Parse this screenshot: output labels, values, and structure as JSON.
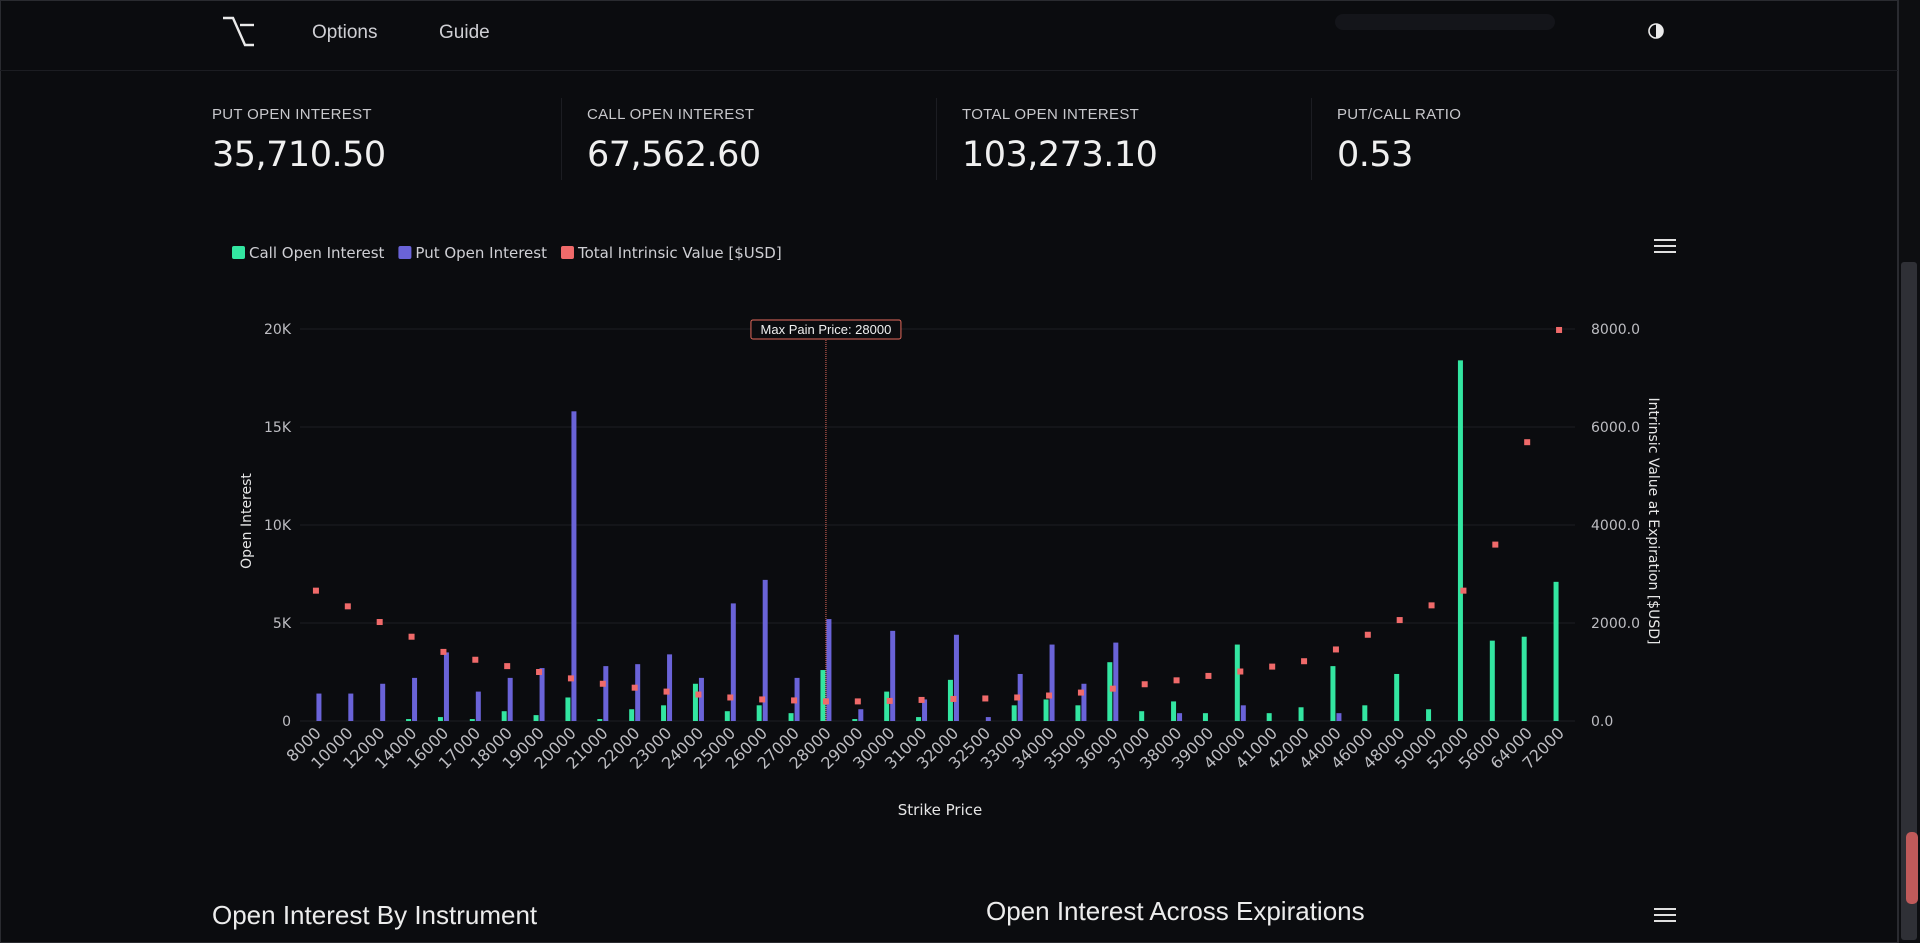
{
  "nav": {
    "links": [
      "Options",
      "Guide"
    ]
  },
  "stats": [
    {
      "label": "PUT OPEN INTEREST",
      "value": "35,710.50"
    },
    {
      "label": "CALL OPEN INTEREST",
      "value": "67,562.60"
    },
    {
      "label": "TOTAL OPEN INTEREST",
      "value": "103,273.10"
    },
    {
      "label": "PUT/CALL RATIO",
      "value": "0.53"
    }
  ],
  "colors": {
    "call": "#33e6a1",
    "put": "#6a63d8",
    "intrinsic": "#f06a6a",
    "annotation": "#e46a5c"
  },
  "chart_data": {
    "type": "bar",
    "xlabel": "Strike Price",
    "ylabel": "Open Interest",
    "y2label": "Intrinsic Value at Expiration [$USD]",
    "legend": [
      "Call Open Interest",
      "Put Open Interest",
      "Total Intrinsic Value [$USD]"
    ],
    "legend_position": "top-left",
    "ylim": [
      0,
      20000
    ],
    "y_ticks": [
      "0",
      "5K",
      "10K",
      "15K",
      "20K"
    ],
    "y2lim": [
      0,
      8000
    ],
    "y2_ticks": [
      "0.0",
      "2000.0",
      "4000.0",
      "6000.0",
      "8000.0"
    ],
    "categories": [
      "8000",
      "10000",
      "12000",
      "14000",
      "16000",
      "17000",
      "18000",
      "19000",
      "20000",
      "21000",
      "22000",
      "23000",
      "24000",
      "25000",
      "26000",
      "27000",
      "28000",
      "29000",
      "30000",
      "31000",
      "32000",
      "32500",
      "33000",
      "34000",
      "35000",
      "36000",
      "37000",
      "38000",
      "39000",
      "40000",
      "41000",
      "42000",
      "44000",
      "46000",
      "48000",
      "50000",
      "52000",
      "56000",
      "64000",
      "72000"
    ],
    "series": [
      {
        "name": "Call Open Interest",
        "kind": "bar",
        "axis": "left",
        "values": [
          0,
          0,
          0,
          100,
          200,
          100,
          500,
          300,
          1200,
          100,
          600,
          800,
          1900,
          500,
          800,
          400,
          2600,
          100,
          1500,
          200,
          2100,
          0,
          800,
          1100,
          800,
          3000,
          500,
          1000,
          400,
          3900,
          400,
          700,
          2800,
          800,
          2400,
          600,
          18400,
          4100,
          4300,
          7100
        ]
      },
      {
        "name": "Put Open Interest",
        "kind": "bar",
        "axis": "left",
        "values": [
          1400,
          1400,
          1900,
          2200,
          3500,
          1500,
          2200,
          2700,
          15800,
          2800,
          2900,
          3400,
          2200,
          6000,
          7200,
          2200,
          5200,
          600,
          4600,
          1100,
          4400,
          200,
          2400,
          3900,
          1900,
          4000,
          0,
          400,
          0,
          800,
          0,
          0,
          400,
          0,
          0,
          0,
          0,
          0,
          0,
          0
        ]
      },
      {
        "name": "Total Intrinsic Value [$USD]",
        "kind": "marker",
        "axis": "right",
        "values": [
          2660,
          2340,
          2020,
          1720,
          1410,
          1250,
          1120,
          1000,
          870,
          760,
          680,
          600,
          540,
          480,
          440,
          420,
          400,
          400,
          410,
          430,
          450,
          460,
          480,
          520,
          580,
          660,
          750,
          830,
          920,
          1010,
          1110,
          1220,
          1460,
          1760,
          2060,
          2360,
          2660,
          3600,
          5690,
          7980
        ]
      }
    ],
    "annotation": {
      "label": "Max Pain Price: 28000",
      "x": "28000"
    }
  },
  "sections": {
    "left_title": "Open Interest By Instrument",
    "right_title": "Open Interest Across Expirations"
  }
}
